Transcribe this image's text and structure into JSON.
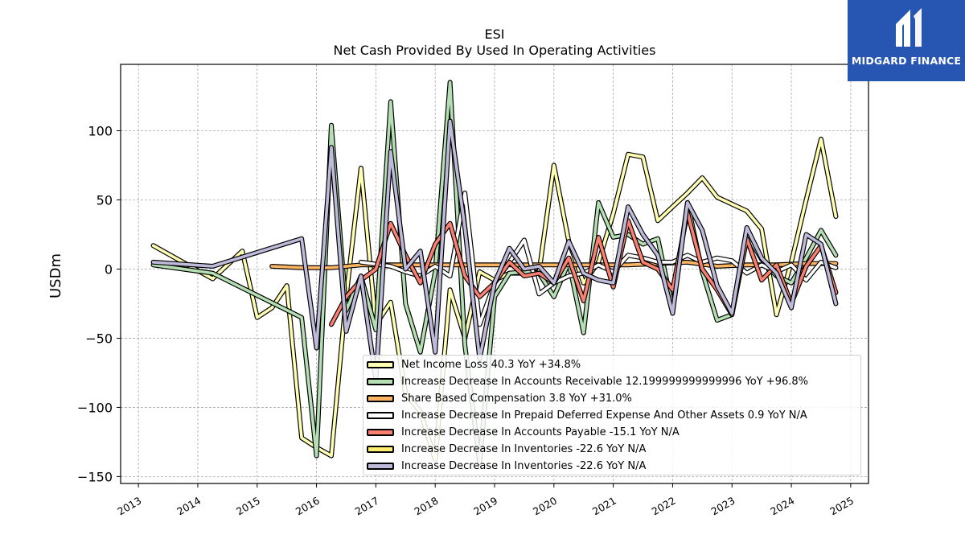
{
  "title": "ESI",
  "subtitle": "Net Cash Provided By Used In Operating Activities",
  "logo": {
    "text": "MIDGARD FINANCE",
    "background": "#2756b2"
  },
  "chart_data": {
    "type": "line",
    "ylabel": "USDm",
    "xlabel": "",
    "xlim": [
      2012.7,
      2025.3
    ],
    "ylim": [
      -155,
      148
    ],
    "x_ticks": [
      "2013",
      "2014",
      "2015",
      "2016",
      "2017",
      "2018",
      "2019",
      "2020",
      "2021",
      "2022",
      "2023",
      "2024",
      "2025"
    ],
    "y_ticks": [
      "100",
      "50",
      "0",
      "−50",
      "−100",
      "−150"
    ],
    "y_tick_values": [
      100,
      50,
      0,
      -50,
      -100,
      -150
    ],
    "grid": true,
    "legend_position": "lower-right",
    "series": [
      {
        "name": "Net Income Loss",
        "legend": "Net Income Loss  40.3 YoY +34.8%",
        "color": "#ffffb3",
        "points": [
          [
            2013.25,
            17
          ],
          [
            2014.25,
            -7
          ],
          [
            2014.75,
            13
          ],
          [
            2015.0,
            -35
          ],
          [
            2015.25,
            -28
          ],
          [
            2015.5,
            -12
          ],
          [
            2015.75,
            -122
          ],
          [
            2016.0,
            -129
          ],
          [
            2016.25,
            -135
          ],
          [
            2016.5,
            -20
          ],
          [
            2016.75,
            73
          ],
          [
            2017.0,
            -40
          ],
          [
            2017.25,
            -24
          ],
          [
            2017.5,
            -90
          ],
          [
            2017.75,
            -103
          ],
          [
            2018.0,
            -138
          ],
          [
            2018.25,
            -15
          ],
          [
            2018.5,
            -50
          ],
          [
            2018.75,
            -2
          ],
          [
            2019.0,
            -8
          ],
          [
            2019.25,
            -3
          ],
          [
            2019.5,
            -3
          ],
          [
            2019.75,
            -2
          ],
          [
            2020.0,
            75
          ],
          [
            2020.25,
            20
          ],
          [
            2020.5,
            -10
          ],
          [
            2020.75,
            5
          ],
          [
            2021.0,
            40
          ],
          [
            2021.25,
            83
          ],
          [
            2021.5,
            81
          ],
          [
            2021.75,
            35
          ],
          [
            2022.0,
            45
          ],
          [
            2022.25,
            55
          ],
          [
            2022.5,
            66
          ],
          [
            2022.75,
            52
          ],
          [
            2023.0,
            47
          ],
          [
            2023.25,
            42
          ],
          [
            2023.5,
            29
          ],
          [
            2023.75,
            -33
          ],
          [
            2024.0,
            5
          ],
          [
            2024.25,
            50
          ],
          [
            2024.5,
            94
          ],
          [
            2024.75,
            38
          ]
        ]
      },
      {
        "name": "Increase Decrease In Accounts Receivable",
        "legend": "Increase Decrease In Accounts Receivable  12.199999999999996 YoY +96.8%",
        "color": "#b3dfb3",
        "points": [
          [
            2013.25,
            3
          ],
          [
            2014.25,
            -3
          ],
          [
            2015.75,
            -35
          ],
          [
            2016.0,
            -135
          ],
          [
            2016.25,
            104
          ],
          [
            2016.5,
            -30
          ],
          [
            2016.75,
            -5
          ],
          [
            2017.0,
            -44
          ],
          [
            2017.25,
            121
          ],
          [
            2017.5,
            -25
          ],
          [
            2017.75,
            -60
          ],
          [
            2018.0,
            -2
          ],
          [
            2018.25,
            135
          ],
          [
            2018.5,
            -55
          ],
          [
            2018.75,
            -140
          ],
          [
            2019.0,
            -20
          ],
          [
            2019.25,
            -3
          ],
          [
            2019.5,
            -2
          ],
          [
            2019.75,
            -3
          ],
          [
            2020.0,
            -20
          ],
          [
            2020.25,
            5
          ],
          [
            2020.5,
            -46
          ],
          [
            2020.75,
            48
          ],
          [
            2021.0,
            23
          ],
          [
            2021.25,
            25
          ],
          [
            2021.5,
            18
          ],
          [
            2021.75,
            22
          ],
          [
            2022.0,
            -28
          ],
          [
            2022.25,
            48
          ],
          [
            2022.5,
            -2
          ],
          [
            2022.75,
            -37
          ],
          [
            2023.0,
            -33
          ],
          [
            2023.25,
            25
          ],
          [
            2023.5,
            7
          ],
          [
            2023.75,
            -5
          ],
          [
            2024.0,
            -10
          ],
          [
            2024.25,
            8
          ],
          [
            2024.5,
            28
          ],
          [
            2024.75,
            10
          ]
        ]
      },
      {
        "name": "Share Based Compensation",
        "legend": "Share Based Compensation  3.8 YoY +31.0%",
        "color": "#fdb462",
        "points": [
          [
            2015.25,
            2
          ],
          [
            2015.75,
            1
          ],
          [
            2016.25,
            1
          ],
          [
            2016.75,
            3
          ],
          [
            2017.25,
            3
          ],
          [
            2017.75,
            3
          ],
          [
            2018.25,
            3
          ],
          [
            2018.75,
            3
          ],
          [
            2019.25,
            3
          ],
          [
            2019.75,
            3
          ],
          [
            2020.25,
            3
          ],
          [
            2020.75,
            3
          ],
          [
            2021.25,
            3
          ],
          [
            2021.75,
            4
          ],
          [
            2022.25,
            5
          ],
          [
            2022.75,
            2
          ],
          [
            2023.25,
            3
          ],
          [
            2023.75,
            3
          ],
          [
            2024.25,
            4
          ],
          [
            2024.75,
            4
          ]
        ]
      },
      {
        "name": "Increase Decrease In Prepaid Deferred Expense And Other Assets",
        "legend": "Increase Decrease In Prepaid Deferred Expense And Other Assets  0.9 YoY N/A",
        "color": "#ffffff",
        "points": [
          [
            2016.75,
            5
          ],
          [
            2017.25,
            2
          ],
          [
            2017.5,
            -2
          ],
          [
            2017.75,
            -5
          ],
          [
            2018.0,
            2
          ],
          [
            2018.25,
            -5
          ],
          [
            2018.5,
            55
          ],
          [
            2018.75,
            -40
          ],
          [
            2019.0,
            -10
          ],
          [
            2019.25,
            5
          ],
          [
            2019.5,
            21
          ],
          [
            2019.75,
            -18
          ],
          [
            2020.0,
            -10
          ],
          [
            2020.25,
            -5
          ],
          [
            2020.5,
            -3
          ],
          [
            2020.75,
            3
          ],
          [
            2021.0,
            -2
          ],
          [
            2021.25,
            10
          ],
          [
            2021.5,
            8
          ],
          [
            2021.75,
            5
          ],
          [
            2022.0,
            5
          ],
          [
            2022.25,
            10
          ],
          [
            2022.5,
            5
          ],
          [
            2022.75,
            8
          ],
          [
            2023.0,
            6
          ],
          [
            2023.25,
            -3
          ],
          [
            2023.5,
            3
          ],
          [
            2023.75,
            -2
          ],
          [
            2024.0,
            3
          ],
          [
            2024.25,
            -8
          ],
          [
            2024.5,
            5
          ],
          [
            2024.75,
            1
          ]
        ]
      },
      {
        "name": "Increase Decrease In Accounts Payable",
        "legend": "Increase Decrease In Accounts Payable  -15.1 YoY N/A",
        "color": "#fb8072",
        "points": [
          [
            2016.25,
            -40
          ],
          [
            2016.5,
            -20
          ],
          [
            2016.75,
            -8
          ],
          [
            2017.0,
            0
          ],
          [
            2017.25,
            33
          ],
          [
            2017.5,
            10
          ],
          [
            2017.75,
            -10
          ],
          [
            2018.0,
            18
          ],
          [
            2018.25,
            33
          ],
          [
            2018.5,
            -5
          ],
          [
            2018.75,
            -20
          ],
          [
            2019.0,
            -10
          ],
          [
            2019.25,
            5
          ],
          [
            2019.5,
            -5
          ],
          [
            2019.75,
            -3
          ],
          [
            2020.0,
            -10
          ],
          [
            2020.25,
            8
          ],
          [
            2020.5,
            -23
          ],
          [
            2020.75,
            23
          ],
          [
            2021.0,
            -13
          ],
          [
            2021.25,
            35
          ],
          [
            2021.5,
            5
          ],
          [
            2021.75,
            0
          ],
          [
            2022.0,
            -15
          ],
          [
            2022.25,
            41
          ],
          [
            2022.5,
            0
          ],
          [
            2022.75,
            -15
          ],
          [
            2023.0,
            -33
          ],
          [
            2023.25,
            22
          ],
          [
            2023.5,
            -8
          ],
          [
            2023.75,
            3
          ],
          [
            2024.0,
            -25
          ],
          [
            2024.25,
            2
          ],
          [
            2024.5,
            17
          ],
          [
            2024.75,
            -17
          ]
        ]
      },
      {
        "name": "Increase Decrease In Inventories",
        "legend": "Increase Decrease In Inventories  -22.6 YoY N/A",
        "color": "#ffed6f",
        "points": []
      },
      {
        "name": "Increase Decrease In Inventories",
        "legend": "Increase Decrease In Inventories  -22.6 YoY N/A",
        "color": "#bebada",
        "points": [
          [
            2013.25,
            5
          ],
          [
            2014.25,
            2
          ],
          [
            2015.75,
            22
          ],
          [
            2016.0,
            -57
          ],
          [
            2016.25,
            88
          ],
          [
            2016.5,
            -45
          ],
          [
            2016.75,
            -5
          ],
          [
            2017.0,
            -80
          ],
          [
            2017.25,
            85
          ],
          [
            2017.5,
            0
          ],
          [
            2017.75,
            13
          ],
          [
            2018.0,
            -60
          ],
          [
            2018.25,
            107
          ],
          [
            2018.5,
            30
          ],
          [
            2018.75,
            -65
          ],
          [
            2019.0,
            -10
          ],
          [
            2019.25,
            15
          ],
          [
            2019.5,
            0
          ],
          [
            2019.75,
            2
          ],
          [
            2020.0,
            -10
          ],
          [
            2020.25,
            20
          ],
          [
            2020.5,
            -3
          ],
          [
            2020.75,
            -8
          ],
          [
            2021.0,
            -10
          ],
          [
            2021.25,
            45
          ],
          [
            2021.5,
            25
          ],
          [
            2021.75,
            10
          ],
          [
            2022.0,
            -32
          ],
          [
            2022.25,
            48
          ],
          [
            2022.5,
            28
          ],
          [
            2022.75,
            -12
          ],
          [
            2023.0,
            -32
          ],
          [
            2023.25,
            30
          ],
          [
            2023.5,
            8
          ],
          [
            2023.75,
            -3
          ],
          [
            2024.0,
            -28
          ],
          [
            2024.25,
            25
          ],
          [
            2024.5,
            18
          ],
          [
            2024.75,
            -25
          ]
        ]
      }
    ]
  }
}
